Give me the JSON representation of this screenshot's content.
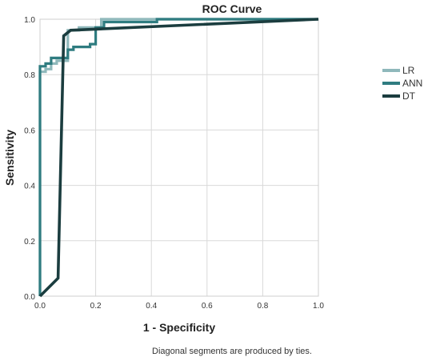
{
  "chart_data": {
    "type": "line",
    "title": "ROC Curve",
    "xlabel": "1 - Specificity",
    "ylabel": "Sensitivity",
    "xlim": [
      0,
      1
    ],
    "ylim": [
      0,
      1
    ],
    "x_ticks": [
      "0.0",
      "0.2",
      "0.4",
      "0.6",
      "0.8",
      "1.0"
    ],
    "y_ticks": [
      "0.0",
      "0.2",
      "0.4",
      "0.6",
      "0.8",
      "1.0"
    ],
    "grid": true,
    "legend_placement": "right",
    "note": "Diagonal segments are produced by ties.",
    "series": [
      {
        "name": "LR",
        "color": "#8fb8bb",
        "x": [
          0,
          0,
          0.02,
          0.02,
          0.04,
          0.04,
          0.06,
          0.06,
          0.1,
          0.1,
          0.14,
          0.14,
          0.22,
          0.22,
          0.4,
          0.4,
          1.0
        ],
        "y": [
          0,
          0.81,
          0.81,
          0.82,
          0.82,
          0.84,
          0.84,
          0.85,
          0.85,
          0.96,
          0.96,
          0.97,
          0.97,
          1.0,
          1.0,
          1.0,
          1.0
        ]
      },
      {
        "name": "ANN",
        "color": "#2f7c80",
        "x": [
          0,
          0,
          0.02,
          0.02,
          0.04,
          0.04,
          0.1,
          0.1,
          0.12,
          0.12,
          0.18,
          0.18,
          0.2,
          0.2,
          0.23,
          0.23,
          0.42,
          0.42,
          1.0
        ],
        "y": [
          0,
          0.83,
          0.83,
          0.84,
          0.84,
          0.86,
          0.86,
          0.89,
          0.89,
          0.9,
          0.9,
          0.91,
          0.91,
          0.97,
          0.97,
          0.99,
          0.99,
          1.0,
          1.0
        ]
      },
      {
        "name": "DT",
        "color": "#1b3d3f",
        "x": [
          0,
          0.065,
          0.085,
          0.11,
          1.0
        ],
        "y": [
          0,
          0.065,
          0.94,
          0.96,
          1.0
        ]
      }
    ]
  }
}
